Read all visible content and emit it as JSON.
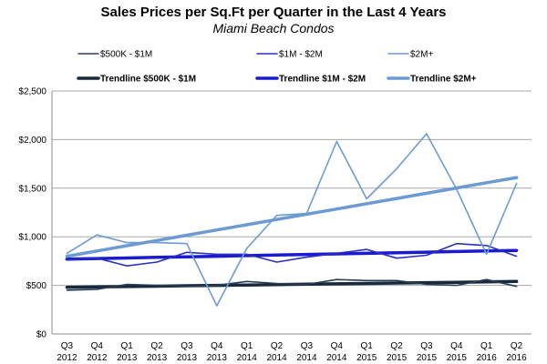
{
  "chart_data": {
    "type": "line",
    "title": "Sales Prices per Sq.Ft per Quarter in the Last 4 Years",
    "subtitle": "Miami Beach Condos",
    "xlabel": "",
    "ylabel": "",
    "ylim": [
      0,
      2500
    ],
    "y_ticks": [
      "$0",
      "$500",
      "$1,000",
      "$1,500",
      "$2,000",
      "$2,500"
    ],
    "y_tick_values": [
      0,
      500,
      1000,
      1500,
      2000,
      2500
    ],
    "grid": "horizontal",
    "legend_position": "top",
    "categories": [
      {
        "q": "Q3",
        "year": "2012"
      },
      {
        "q": "Q4",
        "year": "2012"
      },
      {
        "q": "Q1",
        "year": "2013"
      },
      {
        "q": "Q2",
        "year": "2013"
      },
      {
        "q": "Q3",
        "year": "2013"
      },
      {
        "q": "Q4",
        "year": "2013"
      },
      {
        "q": "Q1",
        "year": "2014"
      },
      {
        "q": "Q2",
        "year": "2014"
      },
      {
        "q": "Q3",
        "year": "2014"
      },
      {
        "q": "Q4",
        "year": "2014"
      },
      {
        "q": "Q1",
        "year": "2015"
      },
      {
        "q": "Q2",
        "year": "2015"
      },
      {
        "q": "Q3",
        "year": "2015"
      },
      {
        "q": "Q4",
        "year": "2015"
      },
      {
        "q": "Q1",
        "year": "2016"
      },
      {
        "q": "Q2",
        "year": "2016"
      }
    ],
    "series": [
      {
        "name": "$500K - $1M",
        "color": "#2a3d52",
        "kind": "data",
        "values": [
          450,
          460,
          510,
          500,
          490,
          500,
          540,
          520,
          510,
          560,
          550,
          550,
          510,
          500,
          560,
          490
        ]
      },
      {
        "name": "$1M - $2M",
        "color": "#2b2fc4",
        "kind": "data",
        "values": [
          760,
          780,
          700,
          740,
          840,
          820,
          820,
          740,
          790,
          830,
          870,
          780,
          810,
          930,
          910,
          800
        ]
      },
      {
        "name": "$2M+",
        "color": "#6c9bd4",
        "kind": "data",
        "values": [
          830,
          1020,
          940,
          940,
          930,
          290,
          880,
          1220,
          1240,
          1980,
          1390,
          1700,
          2060,
          1490,
          820,
          1550
        ]
      },
      {
        "name": "Trendline $500K - $1M",
        "color": "#16293f",
        "kind": "trend",
        "values": [
          480,
          484,
          488,
          492,
          496,
          500,
          504,
          508,
          512,
          516,
          520,
          524,
          528,
          532,
          536,
          540
        ]
      },
      {
        "name": "Trendline $1M - $2M",
        "color": "#1a1ad0",
        "kind": "trend",
        "values": [
          770,
          776,
          782,
          788,
          794,
          800,
          806,
          812,
          818,
          824,
          830,
          836,
          842,
          848,
          854,
          860
        ]
      },
      {
        "name": "Trendline $2M+",
        "color": "#6c9bd4",
        "kind": "trend",
        "values": [
          800,
          854,
          908,
          962,
          1016,
          1070,
          1124,
          1178,
          1232,
          1286,
          1340,
          1394,
          1448,
          1502,
          1556,
          1610
        ]
      }
    ]
  }
}
